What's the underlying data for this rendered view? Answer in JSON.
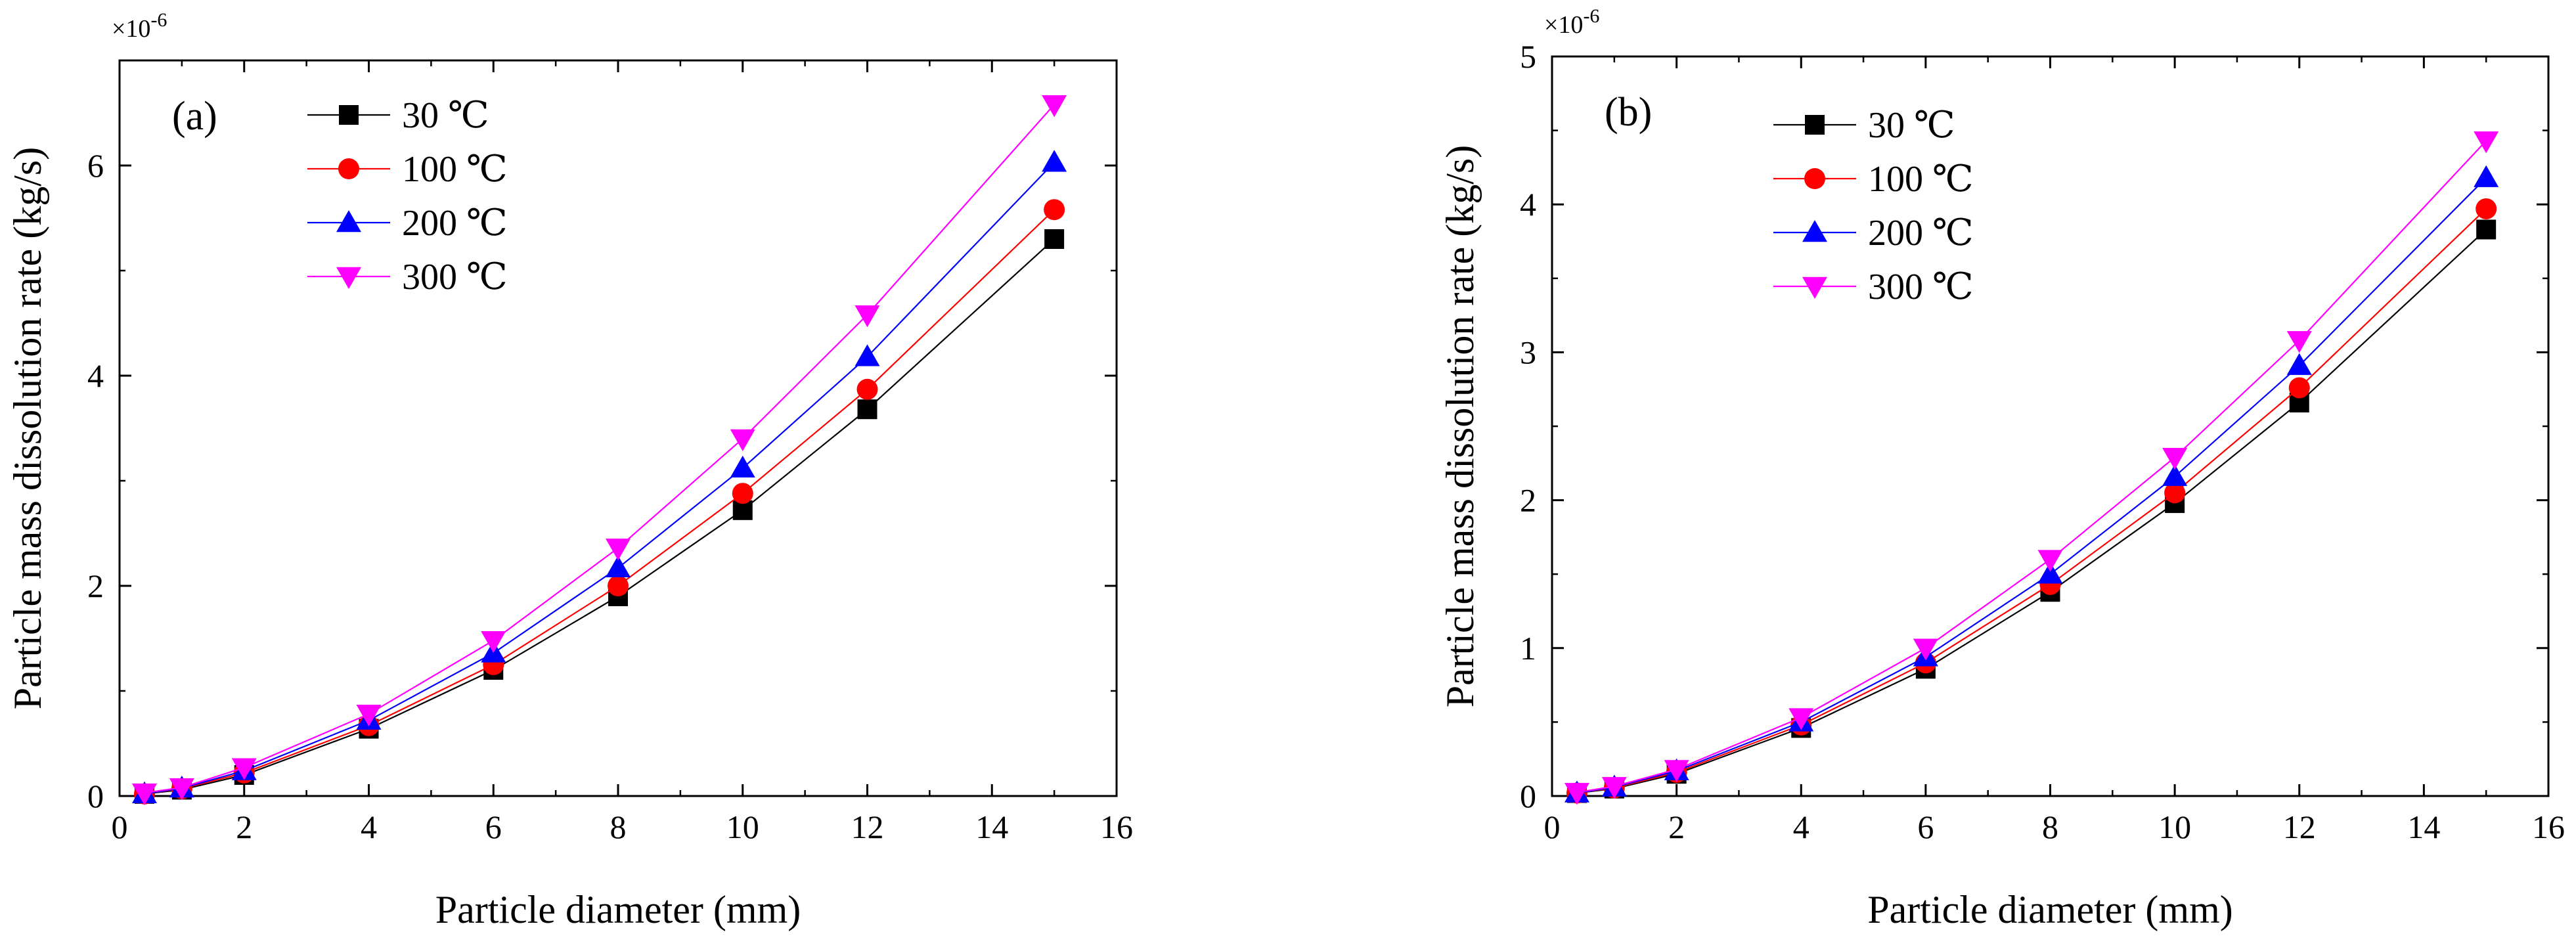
{
  "chart_data": [
    {
      "type": "line",
      "panel_label": "(a)",
      "xlabel": "Particle diameter (mm)",
      "ylabel": "Particle mass dissolution rate (kg/s)",
      "y_multiplier_label": "×10",
      "y_multiplier_exponent": "-6",
      "xlim": [
        0,
        16
      ],
      "ylim": [
        0,
        7
      ],
      "xticks": [
        0,
        2,
        4,
        6,
        8,
        10,
        12,
        14,
        16
      ],
      "yticks": [
        0,
        2,
        4,
        6
      ],
      "xtick_labels": [
        "0",
        "2",
        "4",
        "6",
        "8",
        "10",
        "12",
        "14",
        "16"
      ],
      "ytick_labels": [
        "0",
        "2",
        "4",
        "6"
      ],
      "legend_position": "top-left",
      "x": [
        0.4,
        1,
        2,
        4,
        6,
        8,
        10,
        12,
        15
      ],
      "series": [
        {
          "name": "30 ℃",
          "marker": "square",
          "color": "#000000",
          "values": [
            0.02,
            0.06,
            0.2,
            0.64,
            1.2,
            1.9,
            2.72,
            3.68,
            5.3
          ]
        },
        {
          "name": "100 ℃",
          "marker": "circle",
          "color": "#ff0000",
          "values": [
            0.02,
            0.07,
            0.22,
            0.67,
            1.25,
            2.0,
            2.88,
            3.87,
            5.58
          ]
        },
        {
          "name": "200 ℃",
          "marker": "triangle-up",
          "color": "#0000ff",
          "values": [
            0.02,
            0.075,
            0.24,
            0.72,
            1.36,
            2.17,
            3.12,
            4.18,
            6.03
          ]
        },
        {
          "name": "300 ℃",
          "marker": "triangle-down",
          "color": "#ff00ff",
          "values": [
            0.03,
            0.08,
            0.27,
            0.78,
            1.48,
            2.36,
            3.4,
            4.58,
            6.58
          ]
        }
      ]
    },
    {
      "type": "line",
      "panel_label": "(b)",
      "xlabel": "Particle diameter (mm)",
      "ylabel": "Particle mass dissolution rate (kg/s)",
      "y_multiplier_label": "×10",
      "y_multiplier_exponent": "-6",
      "xlim": [
        0,
        16
      ],
      "ylim": [
        0,
        5
      ],
      "xticks": [
        0,
        2,
        4,
        6,
        8,
        10,
        12,
        14,
        16
      ],
      "yticks": [
        0,
        1,
        2,
        3,
        4,
        5
      ],
      "xtick_labels": [
        "0",
        "2",
        "4",
        "6",
        "8",
        "10",
        "12",
        "14",
        "16"
      ],
      "ytick_labels": [
        "0",
        "1",
        "2",
        "3",
        "4",
        "5"
      ],
      "legend_position": "top-left",
      "x": [
        0.4,
        1,
        2,
        4,
        6,
        8,
        10,
        12,
        15
      ],
      "series": [
        {
          "name": "30 ℃",
          "marker": "square",
          "color": "#000000",
          "values": [
            0.02,
            0.05,
            0.15,
            0.46,
            0.86,
            1.38,
            1.98,
            2.66,
            3.83
          ]
        },
        {
          "name": "100 ℃",
          "marker": "circle",
          "color": "#ff0000",
          "values": [
            0.02,
            0.055,
            0.16,
            0.48,
            0.9,
            1.43,
            2.05,
            2.76,
            3.97
          ]
        },
        {
          "name": "200 ℃",
          "marker": "triangle-up",
          "color": "#0000ff",
          "values": [
            0.02,
            0.06,
            0.17,
            0.5,
            0.94,
            1.5,
            2.16,
            2.91,
            4.18
          ]
        },
        {
          "name": "300 ℃",
          "marker": "triangle-down",
          "color": "#ff00ff",
          "values": [
            0.025,
            0.065,
            0.18,
            0.53,
            1.0,
            1.6,
            2.29,
            3.08,
            4.43
          ]
        }
      ]
    }
  ]
}
